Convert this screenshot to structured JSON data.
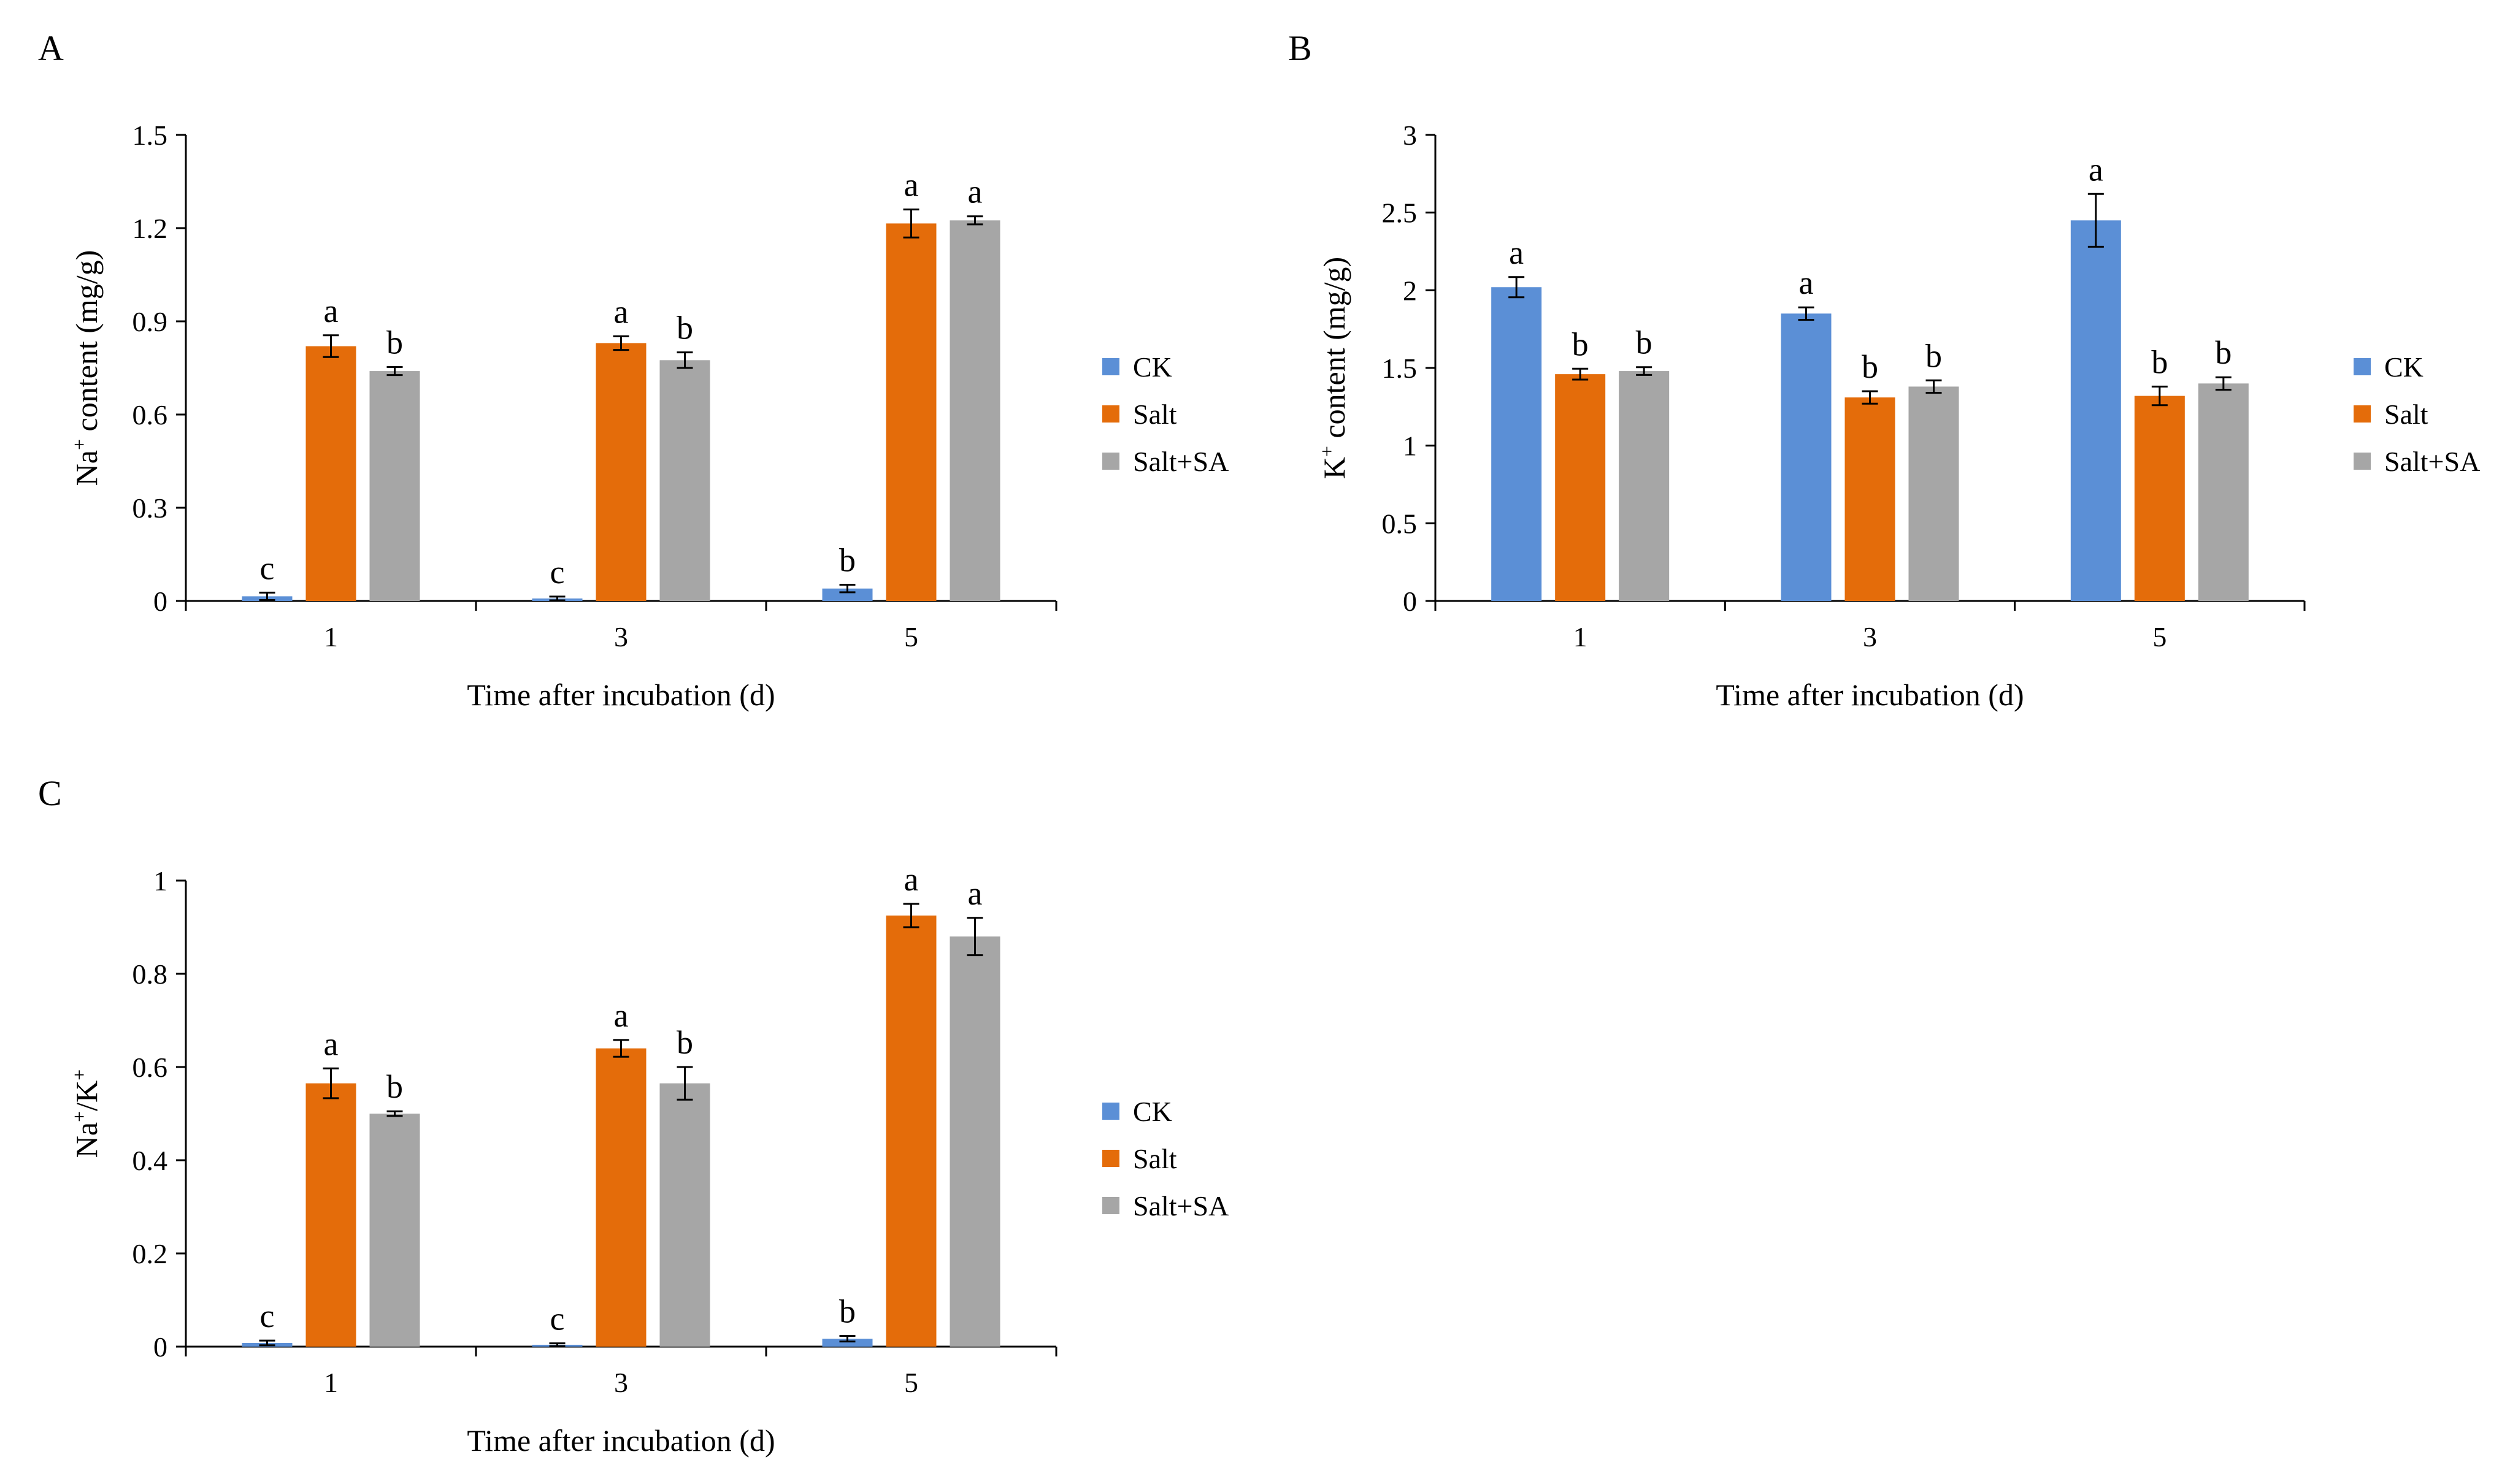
{
  "chart_data": [
    {
      "id": "A",
      "panel_label": "A",
      "type": "bar",
      "categories": [
        "1",
        "3",
        "5"
      ],
      "xlabel": "Time after incubation (d)",
      "ylabel_parts": [
        {
          "t": "Na",
          "sup": false
        },
        {
          "t": "+",
          "sup": true
        },
        {
          "t": " content (mg/g)",
          "sup": false
        }
      ],
      "ylim": [
        0,
        1.5
      ],
      "yticks": [
        0,
        0.3,
        0.6,
        0.9,
        1.2,
        1.5
      ],
      "ytick_labels": [
        "0",
        "0.3",
        "0.6",
        "0.9",
        "1.2",
        "1.5"
      ],
      "series": [
        {
          "name": "CK",
          "color": "#5b8fd6",
          "values": [
            0.015,
            0.008,
            0.04
          ],
          "errors": [
            0.012,
            0.006,
            0.012
          ],
          "letters": [
            "c",
            "c",
            "b"
          ]
        },
        {
          "name": "Salt",
          "color": "#e46c0a",
          "values": [
            0.82,
            0.83,
            1.215
          ],
          "errors": [
            0.035,
            0.022,
            0.045
          ],
          "letters": [
            "a",
            "a",
            "a"
          ]
        },
        {
          "name": "Salt+SA",
          "color": "#a6a6a6",
          "values": [
            0.74,
            0.775,
            1.225
          ],
          "errors": [
            0.013,
            0.025,
            0.013
          ],
          "letters": [
            "b",
            "b",
            "a"
          ]
        }
      ]
    },
    {
      "id": "B",
      "panel_label": "B",
      "type": "bar",
      "categories": [
        "1",
        "3",
        "5"
      ],
      "xlabel": "Time after incubation (d)",
      "ylabel_parts": [
        {
          "t": "K",
          "sup": false
        },
        {
          "t": "+",
          "sup": true
        },
        {
          "t": " content (mg/g)",
          "sup": false
        }
      ],
      "ylim": [
        0,
        3
      ],
      "yticks": [
        0,
        0.5,
        1,
        1.5,
        2,
        2.5,
        3
      ],
      "ytick_labels": [
        "0",
        "0.5",
        "1",
        "1.5",
        "2",
        "2.5",
        "3"
      ],
      "series": [
        {
          "name": "CK",
          "color": "#5b8fd6",
          "values": [
            2.02,
            1.85,
            2.45
          ],
          "errors": [
            0.065,
            0.04,
            0.17
          ],
          "letters": [
            "a",
            "a",
            "a"
          ]
        },
        {
          "name": "Salt",
          "color": "#e46c0a",
          "values": [
            1.46,
            1.31,
            1.32
          ],
          "errors": [
            0.035,
            0.04,
            0.06
          ],
          "letters": [
            "b",
            "b",
            "b"
          ]
        },
        {
          "name": "Salt+SA",
          "color": "#a6a6a6",
          "values": [
            1.48,
            1.38,
            1.4
          ],
          "errors": [
            0.025,
            0.04,
            0.04
          ],
          "letters": [
            "b",
            "b",
            "b"
          ]
        }
      ]
    },
    {
      "id": "C",
      "panel_label": "C",
      "type": "bar",
      "categories": [
        "1",
        "3",
        "5"
      ],
      "xlabel": "Time after incubation (d)",
      "ylabel_parts": [
        {
          "t": "Na",
          "sup": false
        },
        {
          "t": "+",
          "sup": true
        },
        {
          "t": "/K",
          "sup": false
        },
        {
          "t": "+",
          "sup": true
        }
      ],
      "ylim": [
        0,
        1
      ],
      "yticks": [
        0,
        0.2,
        0.4,
        0.6,
        0.8,
        1
      ],
      "ytick_labels": [
        "0",
        "0.2",
        "0.4",
        "0.6",
        "0.8",
        "1"
      ],
      "series": [
        {
          "name": "CK",
          "color": "#5b8fd6",
          "values": [
            0.008,
            0.004,
            0.017
          ],
          "errors": [
            0.005,
            0.003,
            0.006
          ],
          "letters": [
            "c",
            "c",
            "b"
          ]
        },
        {
          "name": "Salt",
          "color": "#e46c0a",
          "values": [
            0.565,
            0.64,
            0.925
          ],
          "errors": [
            0.032,
            0.018,
            0.025
          ],
          "letters": [
            "a",
            "a",
            "a"
          ]
        },
        {
          "name": "Salt+SA",
          "color": "#a6a6a6",
          "values": [
            0.5,
            0.565,
            0.88
          ],
          "errors": [
            0.005,
            0.035,
            0.04
          ],
          "letters": [
            "b",
            "b",
            "a"
          ]
        }
      ]
    }
  ]
}
